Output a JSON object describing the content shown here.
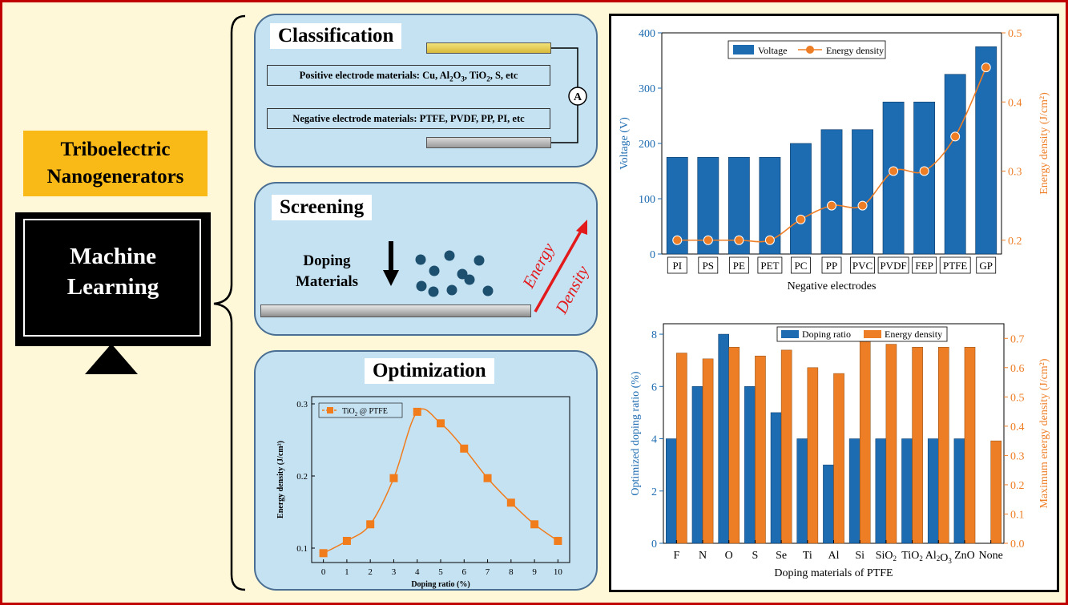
{
  "left": {
    "teng_line1": "Triboelectric",
    "teng_line2": "Nanogenerators",
    "ml_line1": "Machine",
    "ml_line2": "Learning",
    "colors": {
      "teng_bg": "#f9b917",
      "monitor": "#000000"
    }
  },
  "classification": {
    "title": "Classification",
    "positive": {
      "prefix": "Positive electrode materials: Cu, Al",
      "sub1": "2",
      "mid1": "O",
      "sub2": "3",
      "mid2": ", TiO",
      "sub3": "2",
      "suffix": ", S, etc"
    },
    "negative": "Negative electrode materials: PTFE, PVDF, PP, PI, etc",
    "ammeter": "A"
  },
  "screening": {
    "title": "Screening",
    "doping_line1": "Doping",
    "doping_line2": "Materials",
    "arrow_word1": "Energy",
    "arrow_word2": "Density"
  },
  "optimization": {
    "title": "Optimization",
    "chart_data": {
      "type": "line",
      "x": [
        0,
        1,
        2,
        3,
        4,
        5,
        6,
        7,
        8,
        9,
        10
      ],
      "y": [
        0.093,
        0.11,
        0.133,
        0.197,
        0.289,
        0.273,
        0.238,
        0.197,
        0.163,
        0.133,
        0.11
      ],
      "xlabel": "Doping ratio (%)",
      "ylabel": "Energy density (J/cm²)",
      "legend": {
        "prefix": "TiO",
        "sub": "2",
        "suffix": " @ PTFE"
      },
      "xticks": [
        "0",
        "1",
        "2",
        "3",
        "4",
        "5",
        "6",
        "7",
        "8",
        "9",
        "10"
      ],
      "yticks": [
        "0.1",
        "0.2",
        "0.3"
      ],
      "xlim": [
        -0.5,
        10.5
      ],
      "ylim": [
        0.08,
        0.31
      ],
      "color": "#f07c1c"
    }
  },
  "chart1": {
    "chart_data": {
      "type": "bar",
      "categories": [
        "PI",
        "PS",
        "PE",
        "PET",
        "PC",
        "PP",
        "PVC",
        "PVDF",
        "FEP",
        "PTFE",
        "GP"
      ],
      "series": [
        {
          "name": "Voltage",
          "values": [
            175,
            175,
            175,
            175,
            200,
            225,
            225,
            275,
            275,
            325,
            375
          ],
          "axis": "left",
          "color": "#1d6bb0"
        },
        {
          "name": "Energy density",
          "values": [
            0.2,
            0.2,
            0.2,
            0.2,
            0.23,
            0.25,
            0.25,
            0.3,
            0.3,
            0.35,
            0.45
          ],
          "axis": "right",
          "color": "#ee7e26"
        }
      ],
      "xlabel": "Negative electrodes",
      "ylabel_left": "Voltage (V)",
      "ylabel_right": "Energy density (J/cm²)",
      "ylim_left": [
        0,
        400
      ],
      "ylim_right": [
        0.18,
        0.5
      ],
      "yticks_left": [
        "0",
        "100",
        "200",
        "300",
        "400"
      ],
      "yticks_right": [
        "0.2",
        "0.3",
        "0.4",
        "0.5"
      ],
      "legend_placement": "top-center"
    }
  },
  "chart2": {
    "chart_data": {
      "type": "bar",
      "categories": [
        "F",
        "N",
        "O",
        "S",
        "Se",
        "Ti",
        "Al",
        "Si",
        "SiO2",
        "TiO2",
        "Al2O3",
        "ZnO",
        "None"
      ],
      "series": [
        {
          "name": "Doping ratio",
          "values": [
            4,
            6,
            8,
            6,
            5,
            4,
            3,
            4,
            4,
            4,
            4,
            4,
            0
          ],
          "axis": "left",
          "color": "#1d6bb0"
        },
        {
          "name": "Energy density",
          "values": [
            0.65,
            0.63,
            0.67,
            0.64,
            0.66,
            0.6,
            0.58,
            0.69,
            0.68,
            0.67,
            0.67,
            0.67,
            0.35
          ],
          "axis": "right",
          "color": "#ee7e26"
        }
      ],
      "xlabel": "Doping materials of PTFE",
      "ylabel_left": "Optimized doping ratio (%)",
      "ylabel_right": "Maximum energy density (J/cm²)",
      "ylim_left": [
        0,
        8.4
      ],
      "ylim_right": [
        0,
        0.75
      ],
      "yticks_left": [
        "0",
        "2",
        "4",
        "6",
        "8"
      ],
      "yticks_right": [
        "0.0",
        "0.1",
        "0.2",
        "0.3",
        "0.4",
        "0.5",
        "0.6",
        "0.7"
      ],
      "legend_placement": "top-center"
    }
  }
}
